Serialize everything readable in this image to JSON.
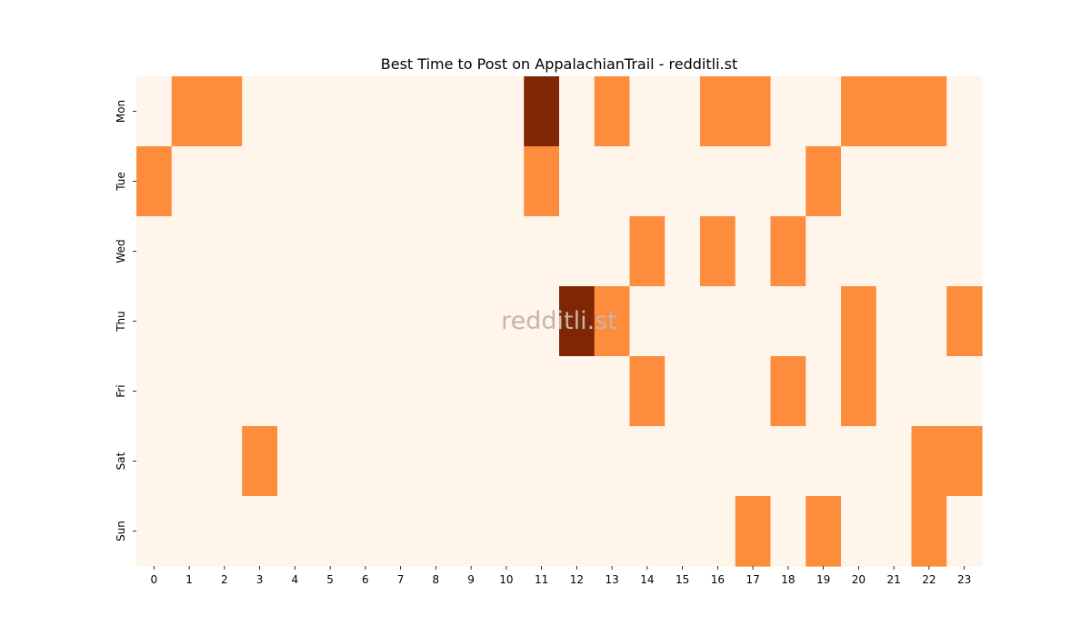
{
  "chart_data": {
    "type": "heatmap",
    "title": "Best Time to Post on AppalachianTrail - redditli.st",
    "xlabel": "",
    "ylabel": "",
    "x_categories": [
      "0",
      "1",
      "2",
      "3",
      "4",
      "5",
      "6",
      "7",
      "8",
      "9",
      "10",
      "11",
      "12",
      "13",
      "14",
      "15",
      "16",
      "17",
      "18",
      "19",
      "20",
      "21",
      "22",
      "23"
    ],
    "y_categories": [
      "Mon",
      "Tue",
      "Wed",
      "Thu",
      "Fri",
      "Sat",
      "Sun"
    ],
    "values": [
      [
        0,
        1,
        1,
        0,
        0,
        0,
        0,
        0,
        0,
        0,
        0,
        2,
        0,
        1,
        0,
        0,
        1,
        1,
        0,
        0,
        1,
        1,
        1,
        0
      ],
      [
        1,
        0,
        0,
        0,
        0,
        0,
        0,
        0,
        0,
        0,
        0,
        1,
        0,
        0,
        0,
        0,
        0,
        0,
        0,
        1,
        0,
        0,
        0,
        0
      ],
      [
        0,
        0,
        0,
        0,
        0,
        0,
        0,
        0,
        0,
        0,
        0,
        0,
        0,
        0,
        1,
        0,
        1,
        0,
        1,
        0,
        0,
        0,
        0,
        0
      ],
      [
        0,
        0,
        0,
        0,
        0,
        0,
        0,
        0,
        0,
        0,
        0,
        0,
        2,
        1,
        0,
        0,
        0,
        0,
        0,
        0,
        1,
        0,
        0,
        1
      ],
      [
        0,
        0,
        0,
        0,
        0,
        0,
        0,
        0,
        0,
        0,
        0,
        0,
        0,
        0,
        1,
        0,
        0,
        0,
        1,
        0,
        1,
        0,
        0,
        0
      ],
      [
        0,
        0,
        0,
        1,
        0,
        0,
        0,
        0,
        0,
        0,
        0,
        0,
        0,
        0,
        0,
        0,
        0,
        0,
        0,
        0,
        0,
        0,
        1,
        1
      ],
      [
        0,
        0,
        0,
        0,
        0,
        0,
        0,
        0,
        0,
        0,
        0,
        0,
        0,
        0,
        0,
        0,
        0,
        1,
        0,
        1,
        0,
        0,
        1,
        0
      ]
    ],
    "value_range": [
      0,
      2
    ],
    "colormap": {
      "0": "#fff5eb",
      "1": "#fd8d3c",
      "2": "#7f2704"
    },
    "watermark": "redditli.st",
    "watermark_color": "#c8b4a8",
    "colorbar": false,
    "grid": false
  }
}
